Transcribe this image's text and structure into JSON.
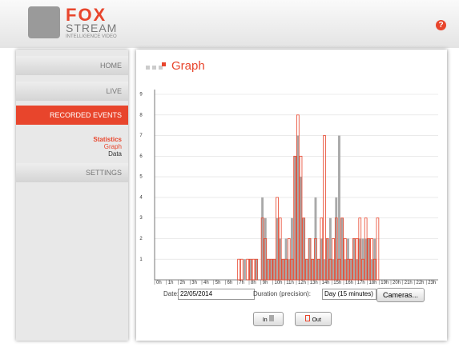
{
  "header": {
    "logo_top": "FOX",
    "logo_mid": "STREAM",
    "logo_bottom": "INTELLIGENCE VIDEO",
    "help": "?"
  },
  "nav": {
    "items": [
      "HOME",
      "LIVE",
      "RECORDED EVENTS",
      "SETTINGS"
    ],
    "sub_title": "Statistics",
    "sub_items": [
      "Graph",
      "Data"
    ]
  },
  "panel": {
    "title": "Graph"
  },
  "chart_data": {
    "type": "bar",
    "x": [
      7,
      7.25,
      7.5,
      7.75,
      8,
      8.25,
      8.5,
      8.75,
      9,
      9.25,
      9.5,
      9.75,
      10,
      10.25,
      10.5,
      10.75,
      11,
      11.25,
      11.5,
      11.75,
      12,
      12.25,
      12.5,
      12.75,
      13,
      13.25,
      13.5,
      13.75,
      14,
      14.25,
      14.5,
      14.75,
      15,
      15.25,
      15.5,
      15.75,
      16,
      16.25,
      16.5,
      16.75,
      17,
      17.25,
      17.5,
      17.75,
      18,
      18.25,
      18.5,
      18.75
    ],
    "series": [
      {
        "name": "In",
        "color": "#a9a9a9",
        "values": [
          0,
          0,
          1,
          0,
          1,
          0,
          1,
          0,
          4,
          3,
          1,
          1,
          1,
          3,
          2,
          1,
          2,
          1,
          3,
          6,
          7,
          5,
          3,
          1,
          2,
          1,
          4,
          1,
          2,
          1,
          2,
          3,
          1,
          4,
          7,
          3,
          1,
          2,
          1,
          2,
          1,
          2,
          2,
          2,
          2,
          1,
          2,
          0
        ]
      },
      {
        "name": "Out",
        "color": "#e8452c",
        "values": [
          1,
          1,
          0,
          1,
          1,
          1,
          1,
          0,
          3,
          2,
          1,
          1,
          1,
          4,
          3,
          1,
          1,
          2,
          1,
          6,
          8,
          6,
          3,
          1,
          2,
          1,
          2,
          1,
          3,
          7,
          2,
          1,
          2,
          3,
          1,
          3,
          2,
          1,
          1,
          2,
          2,
          3,
          1,
          3,
          2,
          2,
          1,
          3
        ]
      }
    ],
    "xlim": [
      0,
      24
    ],
    "xticks": [
      {
        "value": 0,
        "label": "0h"
      },
      {
        "value": 1,
        "label": "1h"
      },
      {
        "value": 2,
        "label": "2h"
      },
      {
        "value": 3,
        "label": "3h"
      },
      {
        "value": 4,
        "label": "4h"
      },
      {
        "value": 5,
        "label": "5h"
      },
      {
        "value": 6,
        "label": "6h"
      },
      {
        "value": 7,
        "label": "7h"
      },
      {
        "value": 8,
        "label": "8h"
      },
      {
        "value": 9,
        "label": "9h"
      },
      {
        "value": 10,
        "label": "10h"
      },
      {
        "value": 11,
        "label": "11h"
      },
      {
        "value": 12,
        "label": "12h"
      },
      {
        "value": 13,
        "label": "13h"
      },
      {
        "value": 14,
        "label": "14h"
      },
      {
        "value": 15,
        "label": "15h"
      },
      {
        "value": 16,
        "label": "16h"
      },
      {
        "value": 17,
        "label": "17h"
      },
      {
        "value": 18,
        "label": "18h"
      },
      {
        "value": 19,
        "label": "19h"
      },
      {
        "value": 20,
        "label": "20h"
      },
      {
        "value": 21,
        "label": "21h"
      },
      {
        "value": 22,
        "label": "22h"
      },
      {
        "value": 23,
        "label": "23h"
      }
    ],
    "ylim": [
      0,
      9
    ],
    "yticks": [
      1,
      2,
      3,
      4,
      5,
      6,
      7,
      8,
      9
    ],
    "grid": true
  },
  "form": {
    "date_label": "Date:",
    "date_value": "22/05/2014",
    "duration_label": "Duration (precision):",
    "duration_value": "Day (15 minutes)",
    "cameras_button": "Cameras..."
  }
}
